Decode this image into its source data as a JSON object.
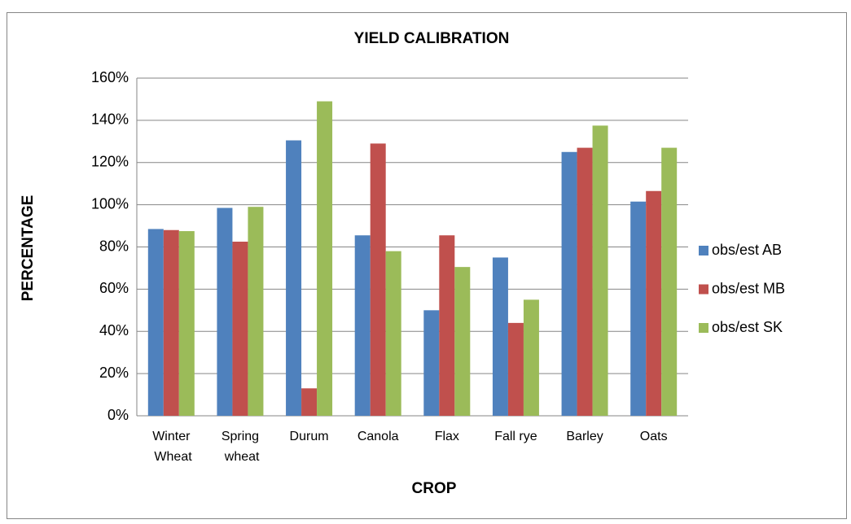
{
  "chart_data": {
    "type": "bar",
    "title": "YIELD CALIBRATION",
    "x_label": "CROP",
    "y_label": "PERCENTAGE",
    "categories": [
      "Winter Wheat",
      "Spring wheat",
      "Durum",
      "Canola",
      "Flax",
      "Fall rye",
      "Barley",
      "Oats"
    ],
    "series": [
      {
        "name": "obs/est AB",
        "color": "#4f81bd",
        "values": [
          88.5,
          98.5,
          130.5,
          85.5,
          50,
          75,
          125,
          101.5
        ]
      },
      {
        "name": "obs/est MB",
        "color": "#c0504d",
        "values": [
          88,
          82.5,
          13,
          129,
          85.5,
          44,
          127,
          106.5
        ]
      },
      {
        "name": "obs/est SK",
        "color": "#9bbb59",
        "values": [
          87.5,
          99,
          149,
          78,
          70.5,
          55,
          137.5,
          127
        ]
      }
    ],
    "ylim": [
      0,
      160
    ],
    "yticks": [
      {
        "value": 0,
        "label": "0%"
      },
      {
        "value": 20,
        "label": "20%"
      },
      {
        "value": 40,
        "label": "40%"
      },
      {
        "value": 60,
        "label": "60%"
      },
      {
        "value": 80,
        "label": "80%"
      },
      {
        "value": 100,
        "label": "100%"
      },
      {
        "value": 120,
        "label": "120%"
      },
      {
        "value": 140,
        "label": "140%"
      },
      {
        "value": 160,
        "label": "160%"
      }
    ],
    "grid": true,
    "legend": "right"
  }
}
